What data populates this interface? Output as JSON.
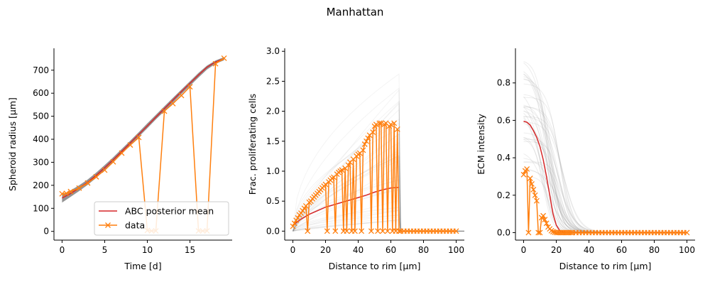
{
  "figure": {
    "title": "Manhattan"
  },
  "colors": {
    "mean": "#d62728",
    "data": "#ff7f0e",
    "posterior": "#808080",
    "legend_border": "#cccccc"
  },
  "legend": {
    "placement": "lower-right",
    "entries": [
      "ABC posterior mean",
      "data"
    ]
  },
  "chart_data": [
    {
      "type": "line",
      "xlabel": "Time [d]",
      "ylabel": "Spheroid radius [μm]",
      "xlim": [
        -0.95,
        19.95
      ],
      "ylim": [
        -38,
        795
      ],
      "xticks": [
        0,
        5,
        10,
        15
      ],
      "yticks": [
        0,
        100,
        200,
        300,
        400,
        500,
        600,
        700
      ],
      "grid": false,
      "posterior_band": {
        "x": [
          0,
          1,
          2,
          3,
          4,
          5,
          6,
          7,
          8,
          9,
          10,
          11,
          12,
          13,
          14,
          15,
          16,
          17,
          18,
          19
        ],
        "lower": [
          125,
          150,
          175,
          202,
          232,
          265,
          300,
          336,
          373,
          411,
          448,
          486,
          522,
          559,
          596,
          632,
          668,
          703,
          728,
          743
        ],
        "upper": [
          160,
          178,
          200,
          225,
          255,
          288,
          322,
          358,
          394,
          431,
          469,
          506,
          543,
          580,
          616,
          652,
          688,
          720,
          742,
          757
        ]
      },
      "series": [
        {
          "name": "ABC posterior mean",
          "x": [
            0,
            1,
            2,
            3,
            4,
            5,
            6,
            7,
            8,
            9,
            10,
            11,
            12,
            13,
            14,
            15,
            16,
            17,
            18,
            19
          ],
          "y": [
            145,
            164,
            188,
            213,
            243,
            276,
            311,
            347,
            384,
            421,
            458,
            496,
            533,
            570,
            607,
            643,
            679,
            713,
            736,
            750
          ]
        },
        {
          "name": "data",
          "x": [
            0,
            0.5,
            1,
            2,
            3,
            4,
            5,
            6,
            7,
            8,
            9,
            10,
            10.5,
            11,
            12,
            13,
            14,
            15,
            16,
            16.5,
            17,
            18,
            19
          ],
          "y": [
            163,
            165,
            173,
            188,
            210,
            237,
            266,
            302,
            340,
            375,
            408,
            4,
            2,
            2,
            522,
            555,
            590,
            628,
            2,
            2,
            2,
            728,
            752
          ]
        }
      ]
    },
    {
      "type": "line",
      "xlabel": "Distance to rim [μm]",
      "ylabel": "Frac. proliferating cells",
      "xlim": [
        -5,
        105
      ],
      "ylim": [
        -0.15,
        3.05
      ],
      "xticks": [
        0,
        20,
        40,
        60,
        80,
        100
      ],
      "yticks": [
        0.0,
        0.5,
        1.0,
        1.5,
        2.0,
        2.5,
        3.0
      ],
      "grid": false,
      "posterior_traces": {
        "count": 40,
        "x_end": 65,
        "max_y": 2.85
      },
      "series": [
        {
          "name": "ABC posterior mean",
          "x": [
            0,
            2,
            5,
            10,
            15,
            20,
            25,
            30,
            35,
            40,
            45,
            50,
            55,
            60,
            65
          ],
          "y": [
            0.1,
            0.14,
            0.2,
            0.28,
            0.34,
            0.4,
            0.44,
            0.48,
            0.52,
            0.56,
            0.6,
            0.65,
            0.69,
            0.72,
            0.73
          ]
        },
        {
          "name": "data",
          "x": [
            0,
            1,
            2,
            3,
            4,
            5,
            6,
            7,
            8,
            9,
            10,
            11,
            12,
            13,
            14,
            15,
            16,
            17,
            18,
            19,
            20,
            21,
            22,
            23,
            24,
            25,
            26,
            27,
            28,
            29,
            30,
            31,
            32,
            33,
            34,
            35,
            36,
            37,
            38,
            39,
            40,
            41,
            42,
            43,
            44,
            45,
            46,
            47,
            48,
            49,
            50,
            51,
            52,
            53,
            54,
            55,
            56,
            57,
            58,
            59,
            60,
            61,
            62,
            63,
            64,
            65,
            66,
            68,
            70,
            72,
            74,
            76,
            78,
            80,
            82,
            84,
            86,
            88,
            90,
            92,
            94,
            96,
            98,
            100
          ],
          "y": [
            0.08,
            0.13,
            0.18,
            0.22,
            0.27,
            0.3,
            0.34,
            0.38,
            0.42,
            0.0,
            0.48,
            0.5,
            0.54,
            0.57,
            0.6,
            0.63,
            0.66,
            0.69,
            0.72,
            0.75,
            0.78,
            0.0,
            0.82,
            0.85,
            0.88,
            0.9,
            0.0,
            0.95,
            0.98,
            1.0,
            1.02,
            0.0,
            1.05,
            0.0,
            1.1,
            1.15,
            0.0,
            1.2,
            0.0,
            1.25,
            1.28,
            1.3,
            0.0,
            1.35,
            1.45,
            1.5,
            1.55,
            1.6,
            0.0,
            1.65,
            1.75,
            1.78,
            0.0,
            1.8,
            1.8,
            0.0,
            1.78,
            1.8,
            0.0,
            1.75,
            1.78,
            0.0,
            1.8,
            0.0,
            1.7,
            0.0,
            0.0,
            0.0,
            0.0,
            0.0,
            0.0,
            0.0,
            0.0,
            0.0,
            0.0,
            0.0,
            0.0,
            0.0,
            0.0,
            0.0,
            0.0,
            0.0,
            0.0,
            0.0
          ]
        }
      ]
    },
    {
      "type": "line",
      "xlabel": "Distance to rim [μm]",
      "ylabel": "ECM intensity",
      "xlim": [
        -5,
        105
      ],
      "ylim": [
        -0.04,
        0.985
      ],
      "xticks": [
        0,
        20,
        40,
        60,
        80,
        100
      ],
      "yticks": [
        0.0,
        0.2,
        0.4,
        0.6,
        0.8
      ],
      "grid": false,
      "posterior_traces": {
        "count": 40,
        "max_y": 0.94
      },
      "series": [
        {
          "name": "ABC posterior mean",
          "x": [
            0,
            2,
            4,
            6,
            8,
            10,
            12,
            14,
            16,
            18,
            20,
            22,
            24,
            26,
            28,
            30,
            40,
            50,
            60,
            70,
            80,
            90,
            100
          ],
          "y": [
            0.595,
            0.59,
            0.575,
            0.545,
            0.51,
            0.46,
            0.39,
            0.3,
            0.2,
            0.1,
            0.04,
            0.012,
            0.004,
            0.001,
            0.0,
            0.0,
            0.0,
            0.0,
            0.0,
            0.0,
            0.0,
            0.0,
            0.0
          ]
        },
        {
          "name": "data",
          "x": [
            0,
            1,
            2,
            3,
            4,
            5,
            6,
            7,
            8,
            9,
            10,
            11,
            12,
            13,
            14,
            15,
            16,
            17,
            18,
            19,
            20,
            21,
            22,
            23,
            24,
            25,
            26,
            27,
            28,
            29,
            30,
            32,
            34,
            36,
            38,
            40,
            42,
            44,
            46,
            48,
            50,
            52,
            54,
            56,
            58,
            60,
            62,
            64,
            66,
            68,
            70,
            72,
            74,
            76,
            78,
            80,
            82,
            84,
            86,
            88,
            90,
            92,
            94,
            96,
            98,
            100
          ],
          "y": [
            0.31,
            0.33,
            0.34,
            0.0,
            0.29,
            0.26,
            0.23,
            0.2,
            0.17,
            0.0,
            0.0,
            0.08,
            0.09,
            0.07,
            0.05,
            0.03,
            0.02,
            0.01,
            0.005,
            0.002,
            0.0,
            0.0,
            0.0,
            0.0,
            0.0,
            0.0,
            0.0,
            0.0,
            0.0,
            0.0,
            0.0,
            0.0,
            0.0,
            0.0,
            0.0,
            0.0,
            0.0,
            0.0,
            0.0,
            0.0,
            0.0,
            0.0,
            0.0,
            0.0,
            0.0,
            0.0,
            0.0,
            0.0,
            0.0,
            0.0,
            0.0,
            0.0,
            0.0,
            0.0,
            0.0,
            0.0,
            0.0,
            0.0,
            0.0,
            0.0,
            0.0,
            0.0,
            0.0,
            0.0,
            0.0,
            0.0
          ]
        }
      ]
    }
  ]
}
